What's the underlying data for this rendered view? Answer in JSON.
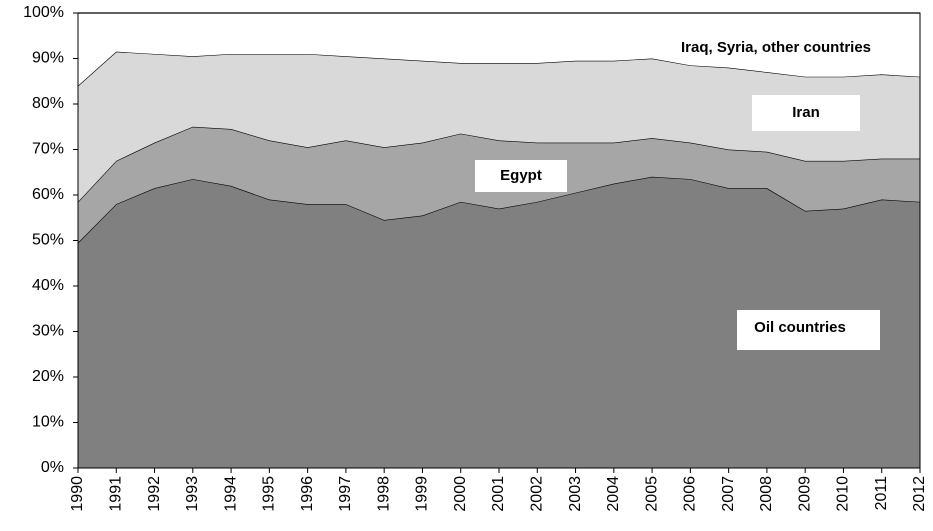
{
  "chart_data": {
    "type": "stacked_area",
    "x": [
      1990,
      1991,
      1992,
      1993,
      1994,
      1995,
      1996,
      1997,
      1998,
      1999,
      2000,
      2001,
      2002,
      2003,
      2004,
      2005,
      2006,
      2007,
      2008,
      2009,
      2010,
      2011,
      2012
    ],
    "xlim": [
      1990,
      2012
    ],
    "ylim": [
      0,
      100
    ],
    "yticks": [
      {
        "value": 0,
        "label": "0%"
      },
      {
        "value": 10,
        "label": "10%"
      },
      {
        "value": 20,
        "label": "20%"
      },
      {
        "value": 30,
        "label": "30%"
      },
      {
        "value": 40,
        "label": "40%"
      },
      {
        "value": 50,
        "label": "50%"
      },
      {
        "value": 60,
        "label": "60%"
      },
      {
        "value": 70,
        "label": "70%"
      },
      {
        "value": 80,
        "label": "80%"
      },
      {
        "value": 90,
        "label": "90%"
      },
      {
        "value": 100,
        "label": "100%"
      }
    ],
    "series": [
      {
        "name": "Oil countries",
        "color": "#808080",
        "values": [
          49.5,
          58,
          61.5,
          63.5,
          62,
          59,
          58,
          58,
          54.5,
          55.5,
          58.5,
          57,
          58.5,
          60.5,
          62.5,
          64,
          63.5,
          61.5,
          61.5,
          56.5,
          57,
          59,
          58.5
        ]
      },
      {
        "name": "Egypt",
        "color": "#a6a6a6",
        "values": [
          9,
          9.5,
          10,
          11.5,
          12.5,
          13,
          12.5,
          14,
          16,
          16,
          15,
          15,
          13,
          11,
          9,
          8.5,
          8,
          8.5,
          8,
          11,
          10.5,
          9,
          9.5
        ]
      },
      {
        "name": "Iran",
        "color": "#d9d9d9",
        "values": [
          25.5,
          24,
          19.5,
          15.5,
          16.5,
          19,
          20.5,
          18.5,
          19.5,
          18,
          15.5,
          17,
          17.5,
          18,
          18,
          17.5,
          17,
          18,
          17.5,
          18.5,
          18.5,
          18.5,
          18
        ]
      },
      {
        "name": "Iraq, Syria, other countries",
        "color": "#ffffff",
        "values": [
          16,
          8.5,
          9,
          9.5,
          9,
          9,
          9,
          9.5,
          10,
          10.5,
          11,
          11,
          11,
          10.5,
          10.5,
          10,
          11.5,
          12,
          13,
          14,
          14,
          13.5,
          14
        ]
      }
    ]
  }
}
